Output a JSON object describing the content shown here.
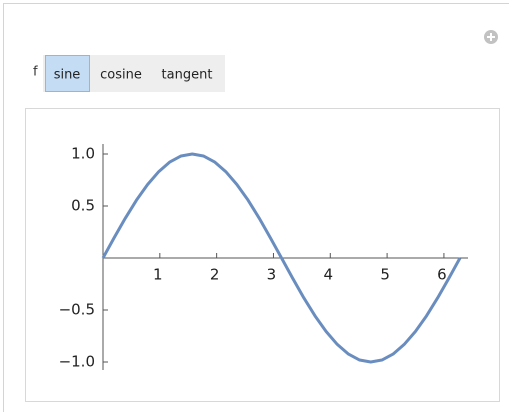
{
  "controls": {
    "label": "f",
    "buttons": [
      "sine",
      "cosine",
      "tangent"
    ],
    "selected": 0
  },
  "chart_data": {
    "type": "line",
    "x": [
      0,
      0.196,
      0.393,
      0.589,
      0.785,
      0.982,
      1.178,
      1.374,
      1.571,
      1.767,
      1.963,
      2.16,
      2.356,
      2.553,
      2.749,
      2.945,
      3.142,
      3.338,
      3.534,
      3.731,
      3.927,
      4.123,
      4.32,
      4.516,
      4.712,
      4.909,
      5.105,
      5.301,
      5.498,
      5.694,
      5.89,
      6.087,
      6.283
    ],
    "series": [
      {
        "color": "#6a8dbf",
        "values": [
          0,
          0.195,
          0.383,
          0.556,
          0.707,
          0.831,
          0.924,
          0.981,
          1,
          0.981,
          0.924,
          0.831,
          0.707,
          0.556,
          0.383,
          0.195,
          0,
          -0.195,
          -0.383,
          -0.556,
          -0.707,
          -0.831,
          -0.924,
          -0.981,
          -1,
          -0.981,
          -0.924,
          -0.831,
          -0.707,
          -0.556,
          -0.383,
          -0.195,
          0
        ]
      }
    ],
    "xlim": [
      0,
      6.283
    ],
    "ylim": [
      -1,
      1
    ],
    "xticks": [
      1,
      2,
      3,
      4,
      5,
      6
    ],
    "yticks": [
      {
        "value": -1,
        "label": "−1.0"
      },
      {
        "value": -0.5,
        "label": "−0.5"
      },
      {
        "value": 0.5,
        "label": "0.5"
      },
      {
        "value": 1,
        "label": "1.0"
      }
    ]
  }
}
